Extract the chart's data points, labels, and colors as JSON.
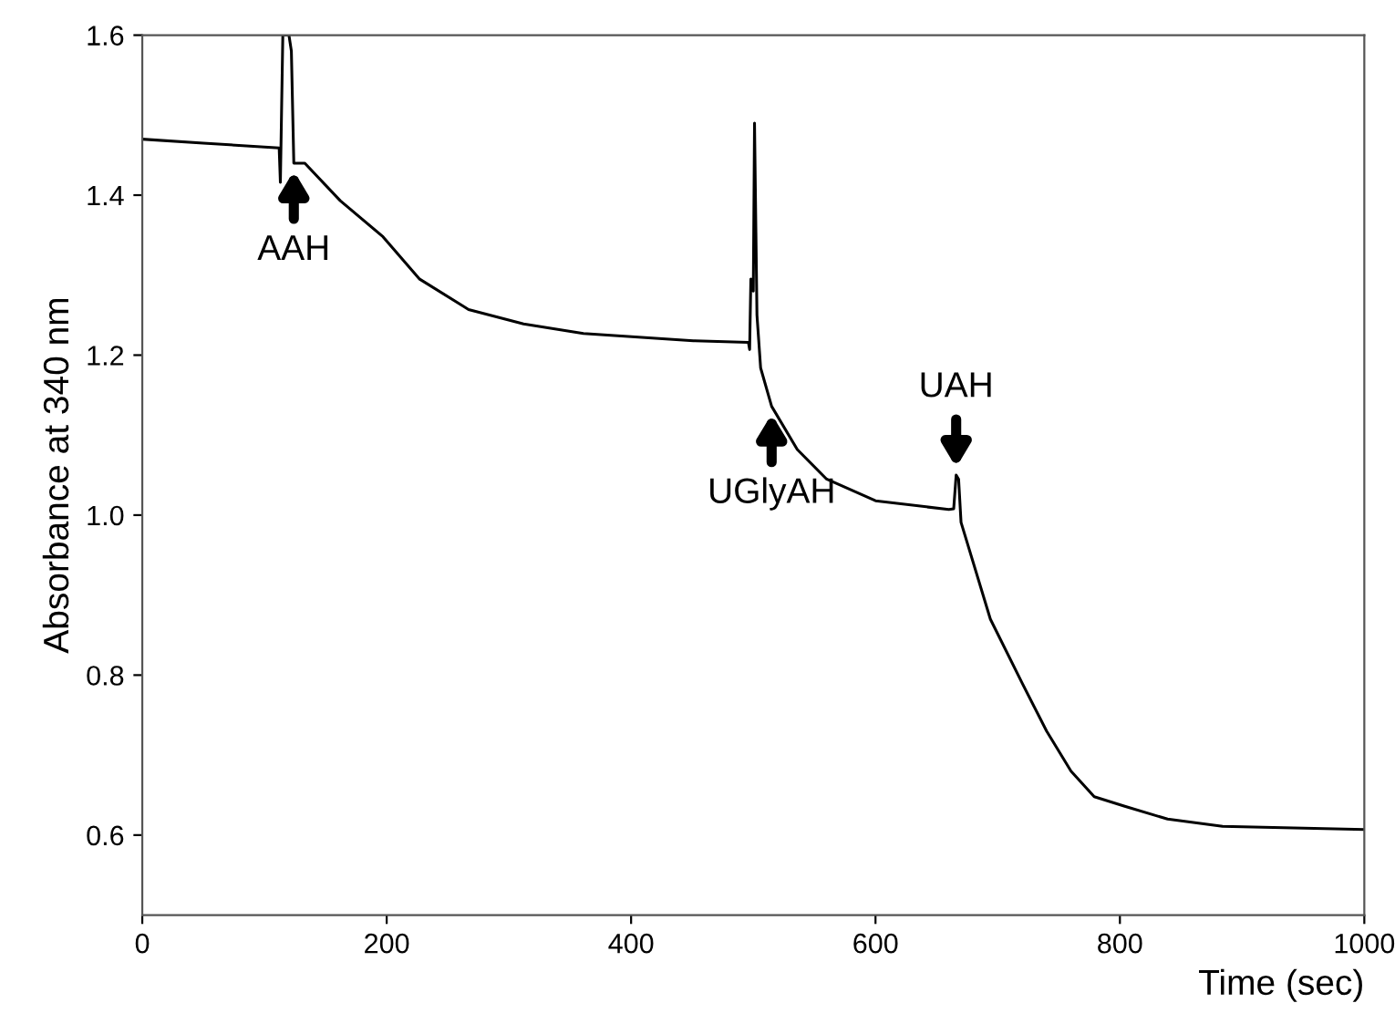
{
  "chart_data": {
    "type": "line",
    "xlabel": "Time (sec)",
    "ylabel": "Absorbance at 340 nm",
    "xlim": [
      0,
      1000
    ],
    "ylim": [
      0.5,
      1.6
    ],
    "xticks": [
      0,
      200,
      400,
      600,
      800,
      1000
    ],
    "yticks": [
      {
        "value": 0.6,
        "label": "0.6"
      },
      {
        "value": 0.8,
        "label": "0.8"
      },
      {
        "value": 1.0,
        "label": "1.0"
      },
      {
        "value": 1.2,
        "label": "1.2"
      },
      {
        "value": 1.4,
        "label": "1.4"
      },
      {
        "value": 1.6,
        "label": "1.6"
      }
    ],
    "grid": false,
    "marker": "none",
    "line_style": "solid",
    "series": [
      {
        "color": "#000000",
        "x": [
          0,
          50,
          112,
          113,
          115,
          116,
          120,
          122,
          124,
          133,
          162,
          197,
          227,
          267,
          312,
          361,
          451,
          496,
          497,
          498,
          500,
          501,
          503,
          506,
          515,
          536,
          560,
          600,
          660,
          664,
          666,
          668,
          670,
          694,
          720,
          740,
          760,
          779,
          804,
          839,
          884,
          1000
        ],
        "values": [
          1.47,
          1.465,
          1.459,
          1.416,
          1.6,
          1.6,
          1.6,
          1.58,
          1.44,
          1.44,
          1.393,
          1.348,
          1.295,
          1.257,
          1.239,
          1.227,
          1.218,
          1.216,
          1.207,
          1.295,
          1.28,
          1.49,
          1.25,
          1.184,
          1.136,
          1.082,
          1.045,
          1.018,
          1.007,
          1.008,
          1.05,
          1.045,
          0.991,
          0.87,
          0.79,
          0.73,
          0.68,
          0.648,
          0.636,
          0.62,
          0.611,
          0.607
        ]
      }
    ],
    "annotations": [
      {
        "text": "AAH",
        "x": 124,
        "y": 1.44
      },
      {
        "text": "UGlyAH",
        "x": 515,
        "y": 1.136
      },
      {
        "text": "UAH",
        "x": 666,
        "y": 1.05
      }
    ]
  }
}
